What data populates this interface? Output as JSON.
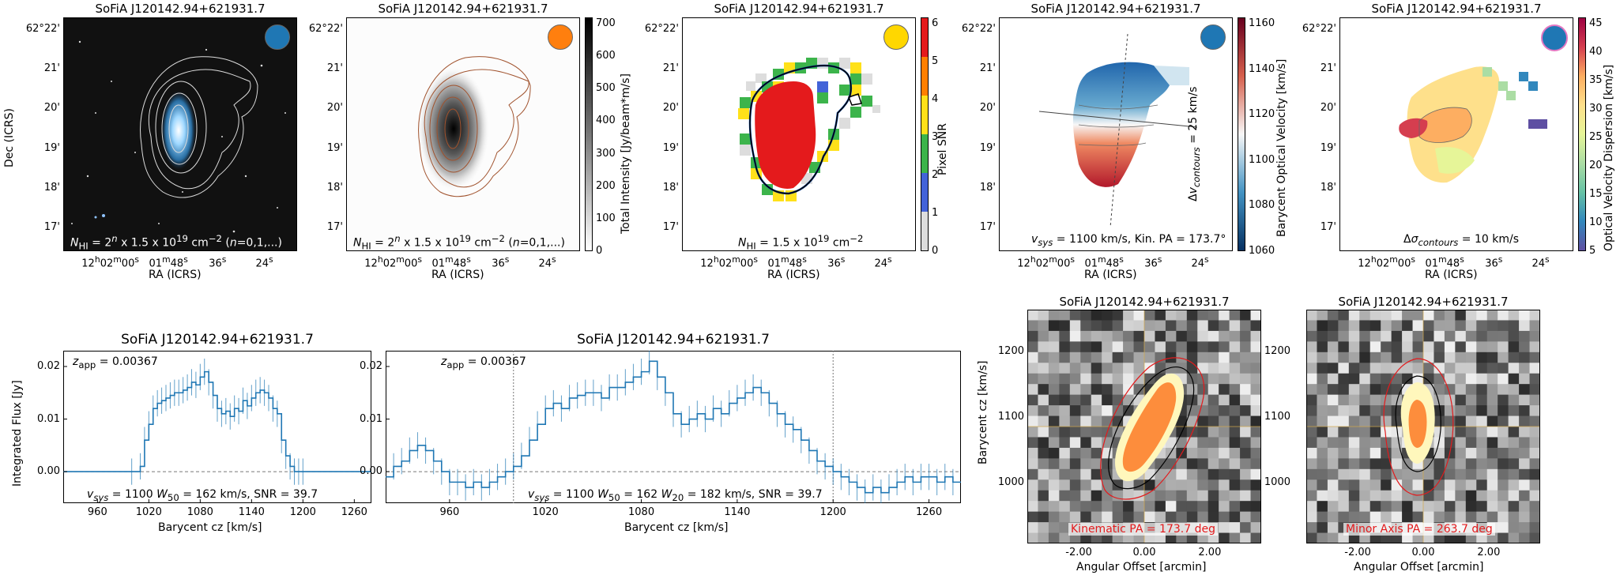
{
  "source_name": "SoFiA J120142.94+621931.7",
  "colors": {
    "beam_dss": "#1f77b4",
    "beam_mom0": "#ff7f0e",
    "beam_snr": "#ffd700",
    "beam_vel": "#1f77b4",
    "beam_disp": "#e377c2",
    "spectrum": "#1f77b4",
    "pv_contour": "#e31a1c"
  },
  "top_panels": {
    "ra_label": "RA (ICRS)",
    "dec_label": "Dec (ICRS)",
    "ra_ticks": [
      "12h02m00s",
      "01m48s",
      "36s",
      "24s"
    ],
    "dec_ticks": [
      "62°22'",
      "21'",
      "20'",
      "19'",
      "18'",
      "17'"
    ],
    "dss": {
      "annotation": "N_HI = 2^n x 1.5 x 10^19 cm^-2 (n=0,1,...)"
    },
    "mom0": {
      "annotation": "N_HI = 2^n x 1.5 x 10^19 cm^-2 (n=0,1,...)",
      "cbar_label": "Total Intensity [Jy/beam*m/s]",
      "cbar_ticks": [
        "700",
        "600",
        "500",
        "400",
        "300",
        "200",
        "100",
        "0"
      ]
    },
    "snr": {
      "annotation": "N_HI = 1.5 x 10^19 cm^-2",
      "cbar_label": "Pixel SNR",
      "cbar_ticks": [
        "6",
        "5",
        "4",
        "3",
        "2",
        "1",
        "0"
      ]
    },
    "vel": {
      "annotation": "v_sys = 1100 km/s, Kin. PA = 173.7°",
      "cbar_label": "Barycent Optical Velocity [km/s]",
      "cbar_label2": "Δv_contours = 25 km/s",
      "cbar_ticks": [
        "1160",
        "1140",
        "1120",
        "1100",
        "1080",
        "1060"
      ]
    },
    "disp": {
      "annotation": "Δσ_contours = 10 km/s",
      "cbar_label": "Optical Velocity Dispersion [km/s]",
      "cbar_ticks": [
        "45",
        "40",
        "35",
        "30",
        "25",
        "20",
        "15",
        "10",
        "5"
      ]
    }
  },
  "spectra": {
    "ylabel": "Integrated Flux [Jy]",
    "xlabel": "Barycent cz [km/s]",
    "y_ticks": [
      "0.02",
      "0.01",
      "0.00"
    ],
    "left": {
      "z_app": "z_app = 0.00367",
      "stats": "v_sys = 1100  W_50 = 162 km/s,  SNR = 39.7",
      "x_ticks": [
        "960",
        "1020",
        "1080",
        "1140",
        "1200",
        "1260"
      ]
    },
    "right": {
      "z_app": "z_app = 0.00367",
      "stats": "v_sys = 1100  W_50 = 162  W_20 = 182 km/s,  SNR = 39.7",
      "x_ticks": [
        "960",
        "1020",
        "1080",
        "1140",
        "1200",
        "1260"
      ]
    }
  },
  "pv": {
    "ylabel": "Barycent cz [km/s]",
    "xlabel": "Angular Offset [arcmin]",
    "x_ticks": [
      "-2.00",
      "0.00",
      "2.00"
    ],
    "y_ticks": [
      "1200",
      "1100",
      "1000"
    ],
    "major": {
      "label": "Kinematic PA = 173.7 deg"
    },
    "minor": {
      "label": "Minor Axis PA = 263.7 deg"
    }
  },
  "chart_data": [
    {
      "type": "line",
      "title": "SoFiA J120142.94+621931.7",
      "xlabel": "Barycent cz [km/s]",
      "ylabel": "Integrated Flux [Jy]",
      "xlim": [
        920,
        1280
      ],
      "ylim": [
        -0.006,
        0.023
      ],
      "series": [
        {
          "x": [
            920,
            1000,
            1010,
            1015,
            1020,
            1025,
            1030,
            1035,
            1040,
            1045,
            1050,
            1055,
            1060,
            1065,
            1070,
            1075,
            1080,
            1085,
            1090,
            1095,
            1100,
            1105,
            1110,
            1115,
            1120,
            1125,
            1130,
            1135,
            1140,
            1145,
            1150,
            1155,
            1160,
            1165,
            1170,
            1175,
            1180,
            1185,
            1190,
            1195,
            1200,
            1280
          ],
          "values": [
            0,
            0,
            0.001,
            0.006,
            0.009,
            0.012,
            0.013,
            0.0135,
            0.014,
            0.0145,
            0.015,
            0.015,
            0.0155,
            0.016,
            0.017,
            0.0165,
            0.018,
            0.019,
            0.017,
            0.0145,
            0.012,
            0.011,
            0.0115,
            0.0105,
            0.012,
            0.0115,
            0.0135,
            0.0125,
            0.014,
            0.015,
            0.0155,
            0.015,
            0.014,
            0.012,
            0.011,
            0.006,
            0.003,
            0.001,
            0,
            0,
            0,
            0
          ]
        }
      ]
    },
    {
      "type": "line",
      "title": "SoFiA J120142.94+621931.7",
      "xlabel": "Barycent cz [km/s]",
      "ylabel": "Integrated Flux [Jy]",
      "xlim": [
        920,
        1280
      ],
      "ylim": [
        -0.006,
        0.023
      ],
      "series": [
        {
          "x": [
            920,
            925,
            930,
            935,
            940,
            945,
            950,
            955,
            960,
            965,
            970,
            975,
            980,
            985,
            990,
            995,
            1000,
            1005,
            1010,
            1015,
            1020,
            1025,
            1030,
            1035,
            1040,
            1045,
            1050,
            1055,
            1060,
            1065,
            1070,
            1075,
            1080,
            1085,
            1090,
            1095,
            1100,
            1105,
            1110,
            1115,
            1120,
            1125,
            1130,
            1135,
            1140,
            1145,
            1150,
            1155,
            1160,
            1165,
            1170,
            1175,
            1180,
            1185,
            1190,
            1195,
            1200,
            1205,
            1210,
            1215,
            1220,
            1225,
            1230,
            1235,
            1240,
            1245,
            1250,
            1255,
            1260,
            1265,
            1270,
            1275,
            1280
          ],
          "values": [
            -0.001,
            0.001,
            0.002,
            0.004,
            0.005,
            0.004,
            0.002,
            0.0,
            -0.002,
            -0.002,
            -0.003,
            -0.002,
            -0.003,
            -0.002,
            -0.001,
            0.0,
            0.001,
            0.003,
            0.006,
            0.009,
            0.012,
            0.013,
            0.012,
            0.014,
            0.0145,
            0.015,
            0.015,
            0.014,
            0.016,
            0.016,
            0.017,
            0.018,
            0.019,
            0.021,
            0.018,
            0.015,
            0.011,
            0.009,
            0.01,
            0.011,
            0.01,
            0.012,
            0.011,
            0.013,
            0.014,
            0.015,
            0.016,
            0.015,
            0.013,
            0.011,
            0.009,
            0.008,
            0.006,
            0.004,
            0.002,
            0.001,
            0.0,
            -0.001,
            -0.002,
            -0.003,
            -0.004,
            -0.003,
            -0.004,
            -0.003,
            -0.002,
            -0.001,
            -0.002,
            -0.001,
            -0.001,
            -0.002,
            -0.001,
            -0.002,
            -0.002
          ]
        }
      ],
      "annotations": [
        "dotted vertical lines at 1000 and 1200 km/s"
      ]
    }
  ]
}
